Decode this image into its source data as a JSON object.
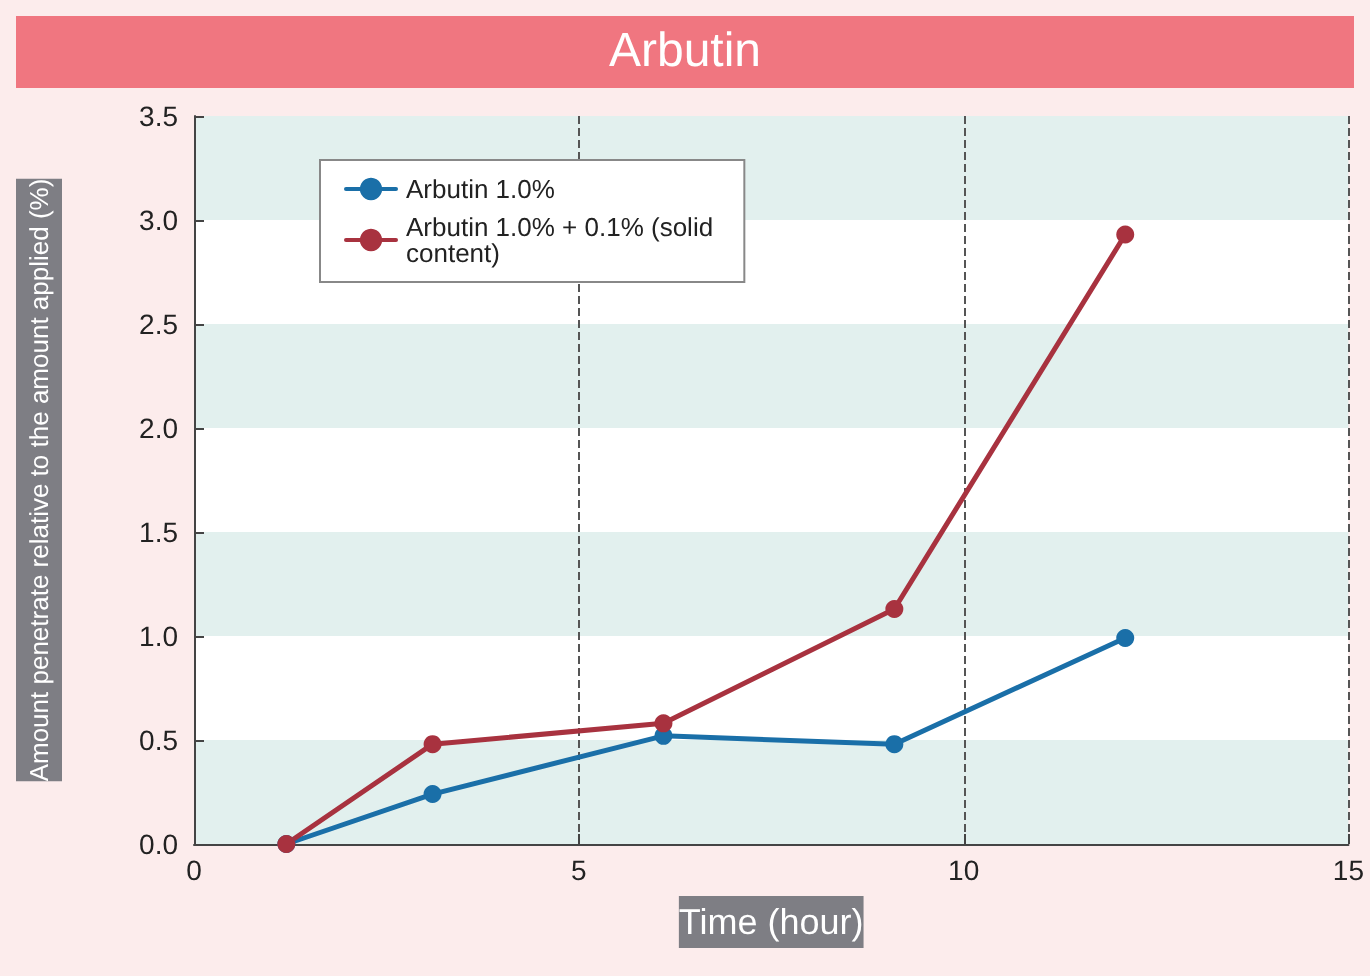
{
  "chart_data": {
    "type": "line",
    "title": "Arbutin",
    "xlabel": "Time (hour)",
    "ylabel": "Amount penetrate relative to the amount applied (%)",
    "x": [
      1.2,
      3.1,
      6.1,
      9.1,
      12.1
    ],
    "series": [
      {
        "name": "Arbutin 1.0%",
        "color": "#1a6fa8",
        "values": [
          0,
          0.24,
          0.52,
          0.48,
          0.99
        ]
      },
      {
        "name": "Arbutin 1.0% + 0.1% (solid content)",
        "color": "#a8323f",
        "values": [
          0,
          0.48,
          0.58,
          1.13,
          2.93
        ]
      }
    ],
    "xlim": [
      0,
      15
    ],
    "xticks": [
      0,
      5,
      10,
      15
    ],
    "ylim": [
      0,
      3.5
    ],
    "yticks": [
      {
        "value": 0,
        "label": "0.0"
      },
      0.5,
      {
        "value": 1,
        "label": "1.0"
      },
      1.5,
      {
        "value": 2,
        "label": "2.0"
      },
      2.5,
      {
        "value": 3,
        "label": "3.0"
      },
      3.5
    ],
    "grid": "x",
    "legend": "top left",
    "marker": "circle",
    "line_style": "solid"
  }
}
